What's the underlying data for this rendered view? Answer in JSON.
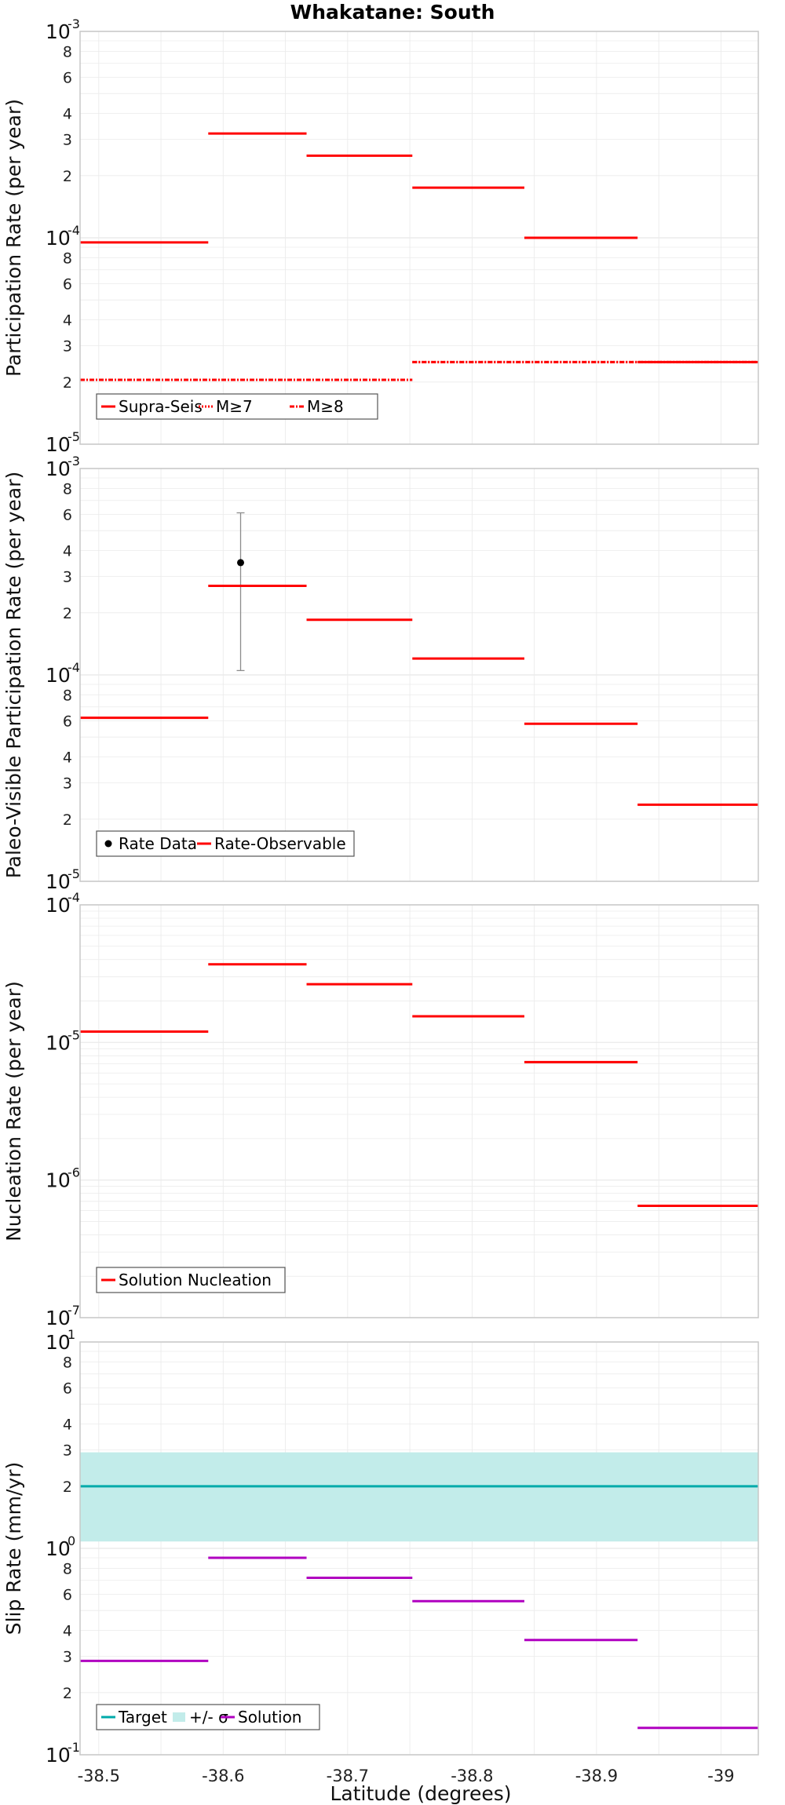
{
  "title": "Whakatane: South",
  "xlabel": "Latitude (degrees)",
  "colors": {
    "red": "#ff0000",
    "magenta": "#b000c0",
    "cyan": "#00aaaa",
    "band": "#c2ecea",
    "grid": "#ebebeb",
    "frame": "#c8c8c8",
    "data_point": "#000000",
    "error_bar": "#8c8c8c"
  },
  "chart_data": [
    {
      "type": "line",
      "ylabel": "Participation Rate (per year)",
      "xlim": [
        -38.485,
        -39.03
      ],
      "ylim": [
        1e-05,
        0.001
      ],
      "yscale": "log",
      "xticks": [
        -38.5,
        -38.6,
        -38.7,
        -38.8,
        -38.9,
        -39
      ],
      "xtick_labels": [
        "-38.5",
        "-38.6",
        "-38.7",
        "-38.8",
        "-38.9",
        "-39"
      ],
      "grid": true,
      "legend_position": "bottom-left",
      "series": [
        {
          "name": "Supra-Seis",
          "style": "solid",
          "segments": [
            {
              "x": [
                -38.485,
                -38.588
              ],
              "y": 9.5e-05
            },
            {
              "x": [
                -38.588,
                -38.667
              ],
              "y": 0.00032
            },
            {
              "x": [
                -38.667,
                -38.752
              ],
              "y": 0.00025
            },
            {
              "x": [
                -38.752,
                -38.842
              ],
              "y": 0.000175
            },
            {
              "x": [
                -38.842,
                -38.933
              ],
              "y": 0.0001
            },
            {
              "x": [
                -38.933,
                -39.03
              ],
              "y": 2.5e-05
            }
          ]
        },
        {
          "name": "M≥7",
          "style": "dotted",
          "segments": [
            {
              "x": [
                -38.485,
                -38.752
              ],
              "y": 2.05e-05
            },
            {
              "x": [
                -38.752,
                -39.03
              ],
              "y": 2.5e-05
            }
          ]
        },
        {
          "name": "M≥8",
          "style": "dashdot",
          "segments": [
            {
              "x": [
                -38.485,
                -38.752
              ],
              "y": 2.05e-05
            },
            {
              "x": [
                -38.752,
                -39.03
              ],
              "y": 2.5e-05
            }
          ]
        }
      ]
    },
    {
      "type": "line",
      "ylabel": "Paleo-Visible Participation Rate (per year)",
      "xlim": [
        -38.485,
        -39.03
      ],
      "ylim": [
        1e-05,
        0.001
      ],
      "yscale": "log",
      "xticks": [
        -38.5,
        -38.6,
        -38.7,
        -38.8,
        -38.9,
        -39
      ],
      "grid": true,
      "legend_position": "bottom-left",
      "series": [
        {
          "name": "Rate Data",
          "style": "point",
          "points": [
            {
              "x": -38.614,
              "y": 0.00035,
              "ylow": 0.000105,
              "yhigh": 0.00061
            }
          ]
        },
        {
          "name": "Rate-Observable",
          "style": "solid",
          "segments": [
            {
              "x": [
                -38.485,
                -38.588
              ],
              "y": 6.2e-05
            },
            {
              "x": [
                -38.588,
                -38.667
              ],
              "y": 0.00027
            },
            {
              "x": [
                -38.667,
                -38.752
              ],
              "y": 0.000185
            },
            {
              "x": [
                -38.752,
                -38.842
              ],
              "y": 0.00012
            },
            {
              "x": [
                -38.842,
                -38.933
              ],
              "y": 5.8e-05
            },
            {
              "x": [
                -38.933,
                -39.03
              ],
              "y": 2.35e-05
            }
          ]
        }
      ]
    },
    {
      "type": "line",
      "ylabel": "Nucleation Rate (per year)",
      "xlim": [
        -38.485,
        -39.03
      ],
      "ylim": [
        1e-07,
        0.0001
      ],
      "yscale": "log",
      "xticks": [
        -38.5,
        -38.6,
        -38.7,
        -38.8,
        -38.9,
        -39
      ],
      "grid": true,
      "legend_position": "bottom-left",
      "series": [
        {
          "name": "Solution Nucleation",
          "style": "solid",
          "segments": [
            {
              "x": [
                -38.485,
                -38.588
              ],
              "y": 1.2e-05
            },
            {
              "x": [
                -38.588,
                -38.667
              ],
              "y": 3.7e-05
            },
            {
              "x": [
                -38.667,
                -38.752
              ],
              "y": 2.65e-05
            },
            {
              "x": [
                -38.752,
                -38.842
              ],
              "y": 1.55e-05
            },
            {
              "x": [
                -38.842,
                -38.933
              ],
              "y": 7.2e-06
            },
            {
              "x": [
                -38.933,
                -39.03
              ],
              "y": 6.5e-07
            }
          ]
        }
      ]
    },
    {
      "type": "line",
      "ylabel": "Slip Rate (mm/yr)",
      "xlim": [
        -38.485,
        -39.03
      ],
      "ylim": [
        0.1,
        10
      ],
      "yscale": "log",
      "xticks": [
        -38.5,
        -38.6,
        -38.7,
        -38.8,
        -38.9,
        -39
      ],
      "xtick_labels": [
        "-38.5",
        "-38.6",
        "-38.7",
        "-38.8",
        "-38.9",
        "-39"
      ],
      "grid": true,
      "legend_position": "bottom-left",
      "series": [
        {
          "name": "Target",
          "style": "solid",
          "color": "cyan",
          "segments": [
            {
              "x": [
                -38.485,
                -39.03
              ],
              "y": 2.0
            }
          ]
        },
        {
          "name": "+/- σ",
          "style": "band",
          "color": "band",
          "low": 1.08,
          "high": 2.92
        },
        {
          "name": "Solution",
          "style": "solid",
          "color": "magenta",
          "segments": [
            {
              "x": [
                -38.485,
                -38.588
              ],
              "y": 0.285
            },
            {
              "x": [
                -38.588,
                -38.667
              ],
              "y": 0.9
            },
            {
              "x": [
                -38.667,
                -38.752
              ],
              "y": 0.72
            },
            {
              "x": [
                -38.752,
                -38.842
              ],
              "y": 0.555
            },
            {
              "x": [
                -38.842,
                -38.933
              ],
              "y": 0.36
            },
            {
              "x": [
                -38.933,
                -39.03
              ],
              "y": 0.135
            }
          ]
        }
      ]
    }
  ]
}
